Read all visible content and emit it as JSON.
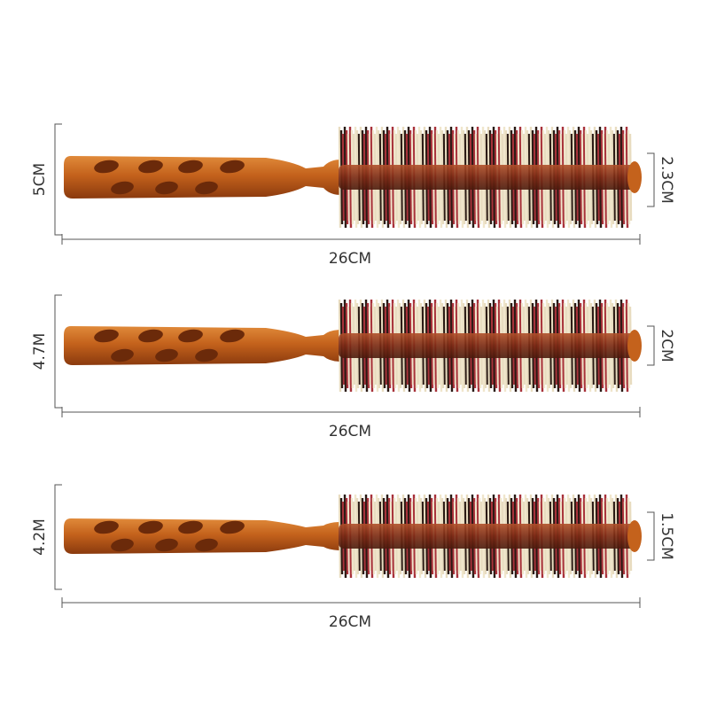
{
  "brushes": [
    {
      "height_label": "5CM",
      "diameter_label": "2.3CM",
      "length_label": "26CM"
    },
    {
      "height_label": "4.7M",
      "diameter_label": "2CM",
      "length_label": "26CM"
    },
    {
      "height_label": "4.2M",
      "diameter_label": "1.5CM",
      "length_label": "26CM"
    }
  ]
}
